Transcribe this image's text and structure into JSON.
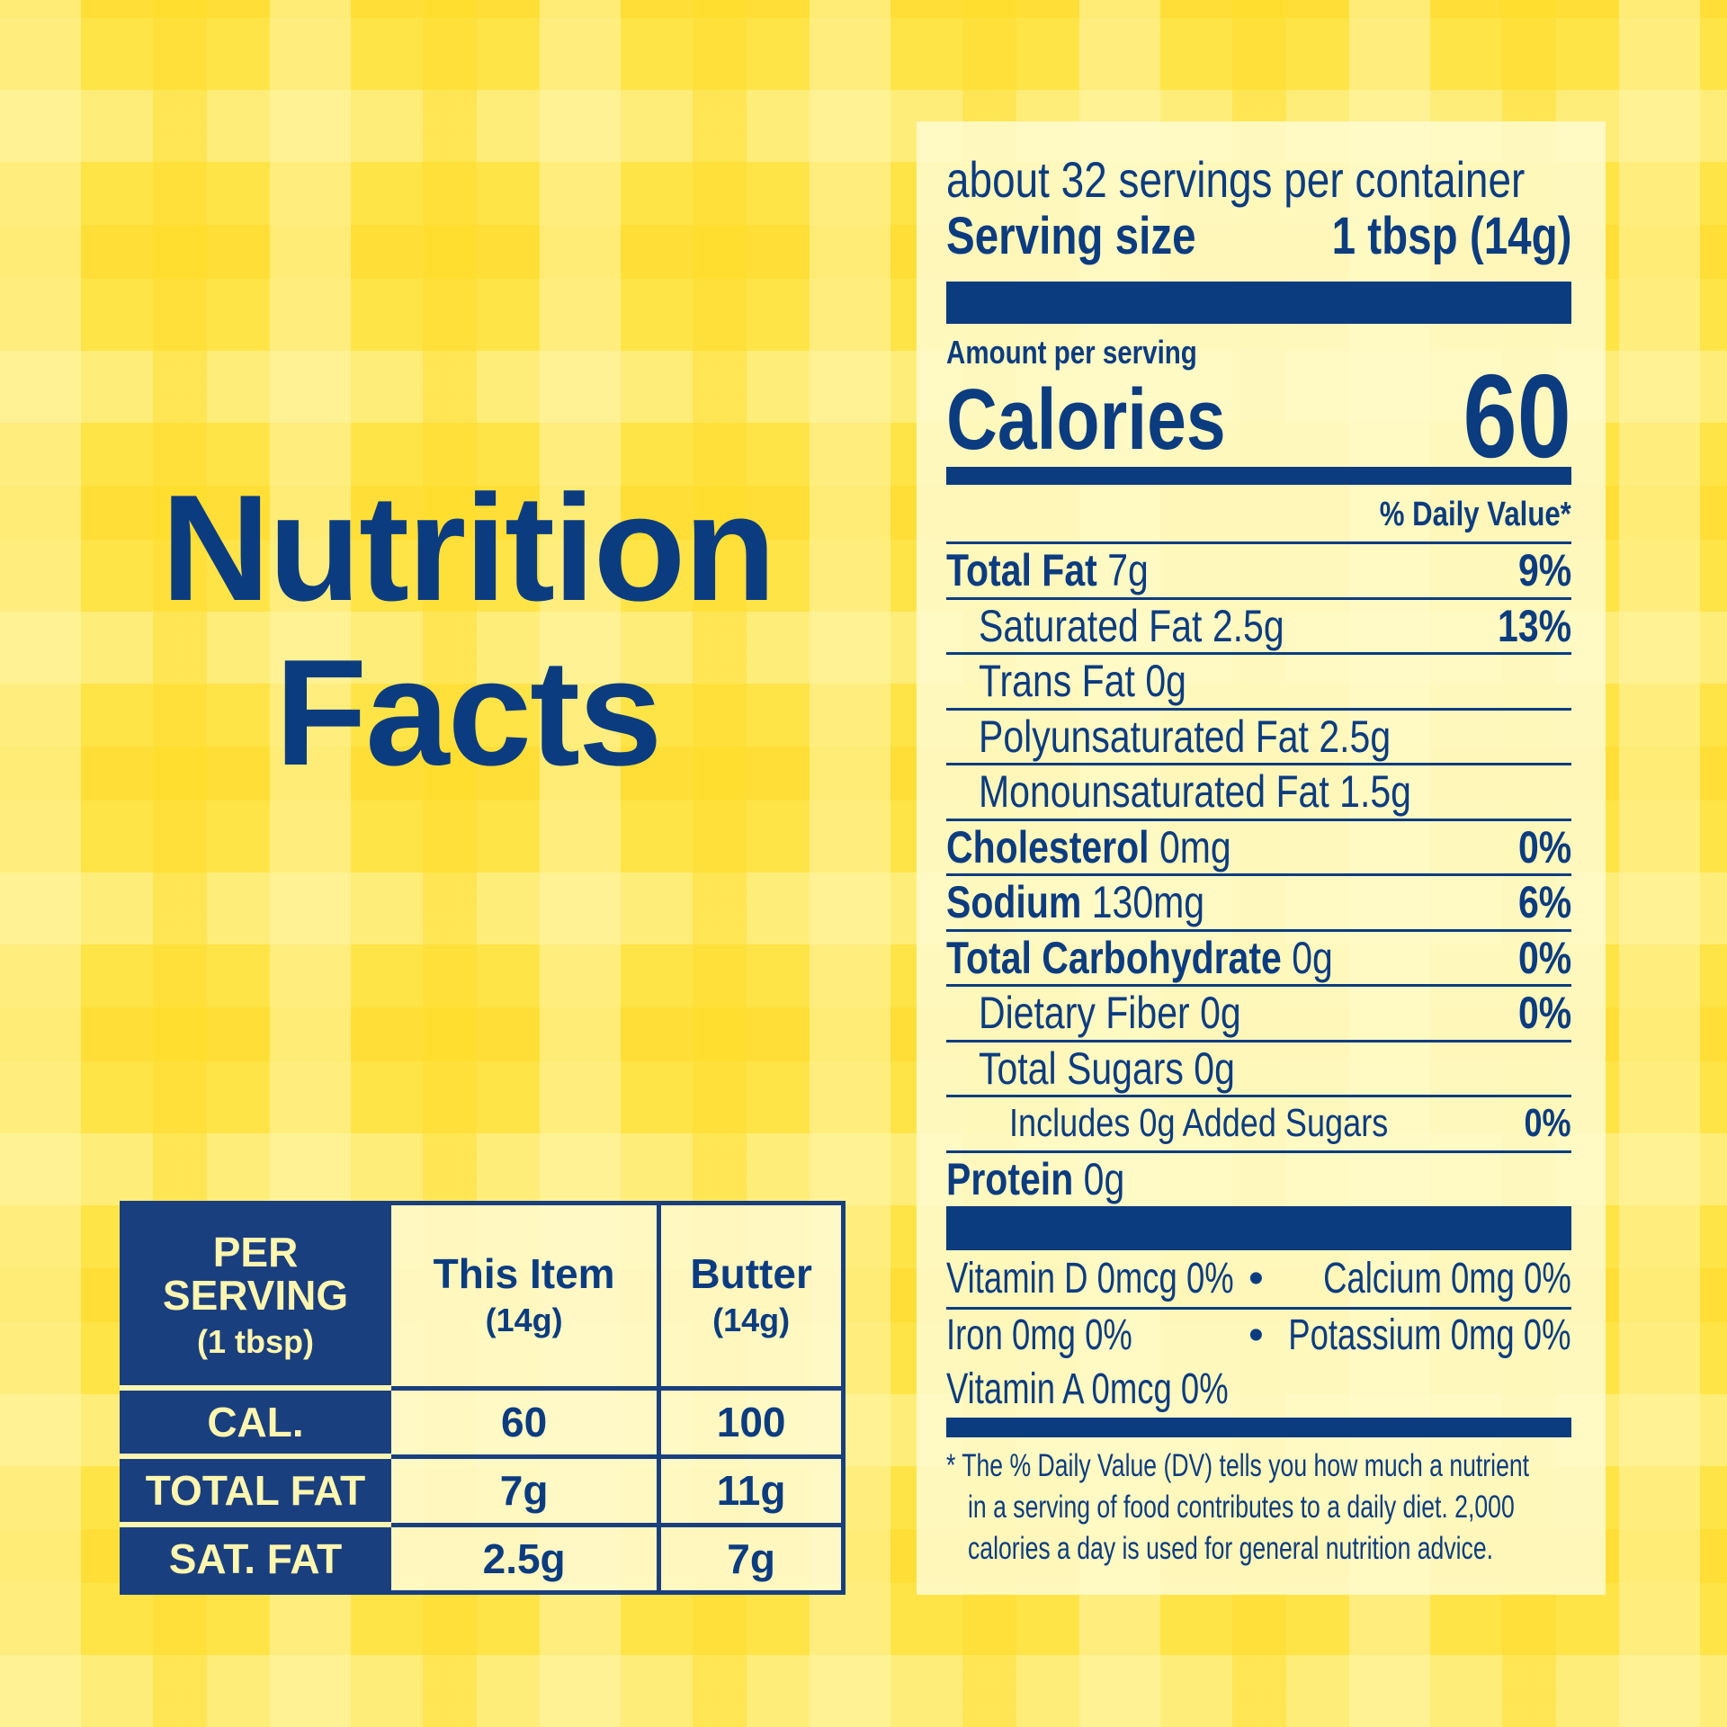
{
  "heading": {
    "line1": "Nutrition",
    "line2": "Facts"
  },
  "label": {
    "servings": "about 32 servings per container",
    "serving_size_label": "Serving size",
    "serving_size_value": "1 tbsp (14g)",
    "amount_per_serving": "Amount per serving",
    "calories_label": "Calories",
    "calories_value": "60",
    "dv_header": "% Daily Value*",
    "rows": [
      {
        "name": "Total Fat",
        "amount": "7g",
        "dv": "9%"
      },
      {
        "name": "Saturated Fat",
        "amount": "2.5g",
        "dv": "13%"
      },
      {
        "name": "Trans Fat",
        "amount": "0g",
        "dv": ""
      },
      {
        "name": "Polyunsaturated Fat",
        "amount": "2.5g",
        "dv": ""
      },
      {
        "name": "Monounsaturated Fat",
        "amount": "1.5g",
        "dv": ""
      },
      {
        "name": "Cholesterol",
        "amount": "0mg",
        "dv": "0%"
      },
      {
        "name": "Sodium",
        "amount": "130mg",
        "dv": "6%"
      },
      {
        "name": "Total Carbohydrate",
        "amount": "0g",
        "dv": "0%"
      },
      {
        "name": "Dietary Fiber",
        "amount": "0g",
        "dv": "0%"
      },
      {
        "name": "Total Sugars",
        "amount": "0g",
        "dv": ""
      },
      {
        "name": "Includes 0g Added Sugars",
        "amount": "",
        "dv": "0%"
      },
      {
        "name": "Protein",
        "amount": "0g",
        "dv": ""
      }
    ],
    "vitamins": {
      "vitamin_d": "Vitamin D 0mcg 0%",
      "calcium": "Calcium 0mg 0%",
      "iron": "Iron 0mg 0%",
      "potassium": "Potassium 0mg 0%",
      "vitamin_a": "Vitamin A 0mcg 0%",
      "bullet": "•"
    },
    "footnote": [
      "* The % Daily Value (DV) tells you how much a nutrient",
      "in a serving of food contributes to a daily diet. 2,000",
      "calories a day is used for general nutrition advice."
    ]
  },
  "comparison": {
    "header": {
      "col0": "PER SERVING",
      "col0_sub": "(1 tbsp)",
      "col1": "This Item",
      "col1_sub": "(14g)",
      "col2": "Butter",
      "col2_sub": "(14g)"
    },
    "rows": [
      {
        "label": "CAL.",
        "this_item": "60",
        "butter": "100"
      },
      {
        "label": "TOTAL FAT",
        "this_item": "7g",
        "butter": "11g"
      },
      {
        "label": "SAT. FAT",
        "this_item": "2.5g",
        "butter": "7g"
      }
    ]
  },
  "colors": {
    "navy": "#0c3c80",
    "yellow": "#ffe448",
    "cream": "#fffacd"
  }
}
